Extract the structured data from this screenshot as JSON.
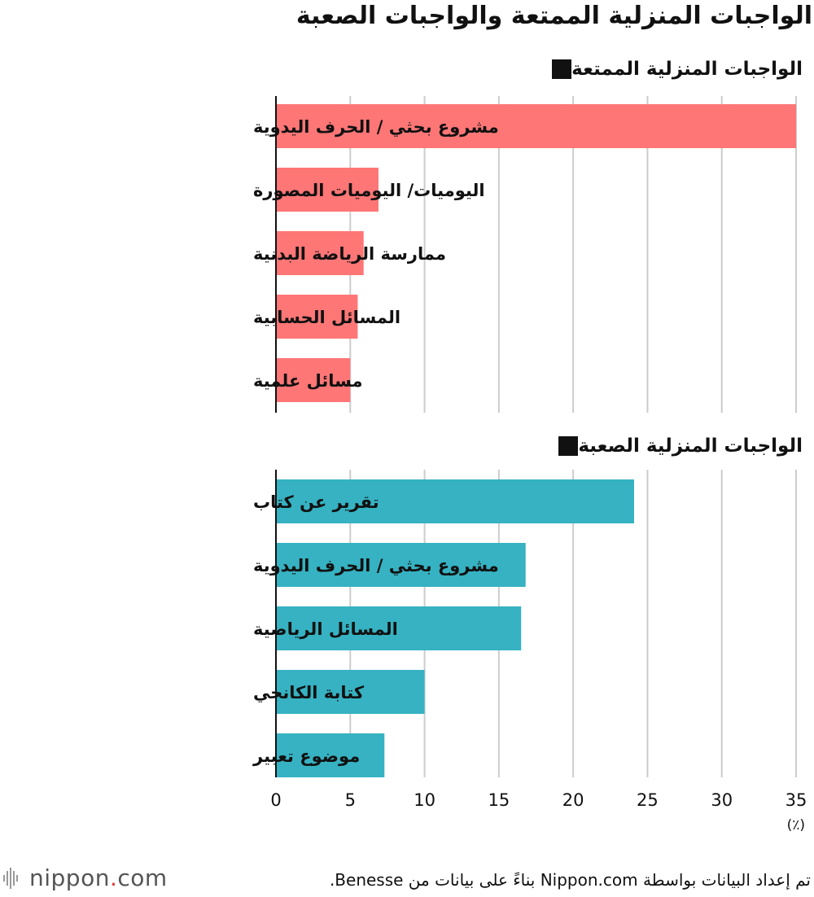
{
  "title": "الواجبات المنزلية الممتعة والواجبات الصعبة",
  "unit": "(٪)",
  "footer": {
    "logo_prefix": "nippon",
    "logo_dot": ".",
    "logo_suffix": "com",
    "source": "تم إعداد البيانات بواسطة Nippon.com بناءً على بيانات من Benesse."
  },
  "colors": {
    "fun": "#ff7676",
    "hard": "#36b2c2",
    "grid": "#cccccc",
    "axis": "#111111"
  },
  "chart_data": [
    {
      "type": "bar",
      "orientation": "horizontal",
      "title": "الواجبات المنزلية الممتعة",
      "categories": [
        "مشروع بحثي / الحرف اليدوية",
        "اليوميات/ اليوميات المصورة",
        "ممارسة الرياضة البدنية",
        "المسائل الحسابية",
        "مسائل علمية"
      ],
      "values": [
        35.0,
        6.9,
        5.9,
        5.5,
        5.0
      ],
      "xlim": [
        0,
        35
      ],
      "grid": true,
      "color": "#ff7676"
    },
    {
      "type": "bar",
      "orientation": "horizontal",
      "title": "الواجبات المنزلية الصعبة",
      "categories": [
        "تقرير عن كتاب",
        "مشروع بحثي / الحرف اليدوية",
        "المسائل الرياضية",
        "كتابة الكانجي",
        "موضوع تعبير"
      ],
      "values": [
        24.1,
        16.8,
        16.5,
        10.0,
        7.3
      ],
      "xlim": [
        0,
        35
      ],
      "xticks": [
        0,
        5,
        10,
        15,
        20,
        25,
        30,
        35
      ],
      "grid": true,
      "color": "#36b2c2"
    }
  ]
}
